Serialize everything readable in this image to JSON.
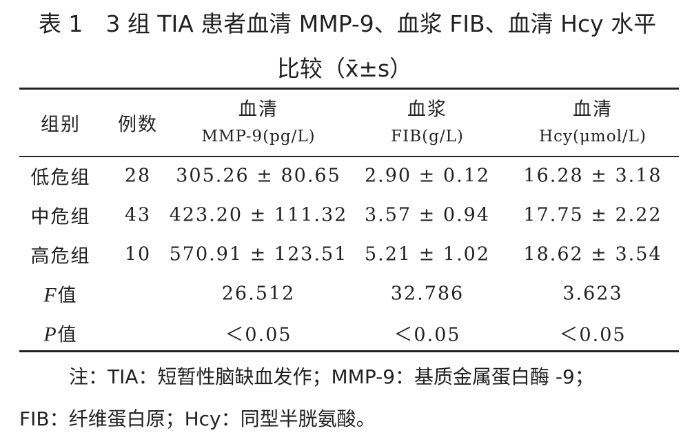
{
  "title": {
    "line1": "表 1　3 组 TIA 患者血清 MMP-9、血浆 FIB、血清 Hcy 水平",
    "line2": "比较（x̄±s）"
  },
  "table": {
    "header": [
      {
        "top": "组别",
        "bottom": null
      },
      {
        "top": "例数",
        "bottom": null
      },
      {
        "top": "血清",
        "bottom": "MMP-9(pg/L)"
      },
      {
        "top": "血浆",
        "bottom": "FIB(g/L)"
      },
      {
        "top": "血清",
        "bottom": "Hcy(μmol/L)"
      }
    ],
    "rows": [
      [
        "低危组",
        "28",
        "305.26 ± 80.65",
        "2.90 ± 0.12",
        "16.28 ± 3.18"
      ],
      [
        "中危组",
        "43",
        "423.20 ± 111.32",
        "3.57 ± 0.94",
        "17.75 ± 2.22"
      ],
      [
        "高危组",
        "10",
        "570.91 ± 123.51",
        "5.21 ± 1.02",
        "18.62 ± 3.54"
      ]
    ],
    "stat_rows": [
      {
        "symbol": "F",
        "suffix": "值",
        "values": [
          "26.512",
          "32.786",
          "3.623"
        ]
      },
      {
        "symbol": "P",
        "suffix": "值",
        "values": [
          "＜0.05",
          "＜0.05",
          "＜0.05"
        ]
      }
    ]
  },
  "notes": {
    "line1": "注：TIA：短暂性脑缺血发作；MMP-9：基质金属蛋白酶 -9；",
    "line2": "FIB：纤维蛋白原；Hcy：同型半胱氨酸。"
  }
}
